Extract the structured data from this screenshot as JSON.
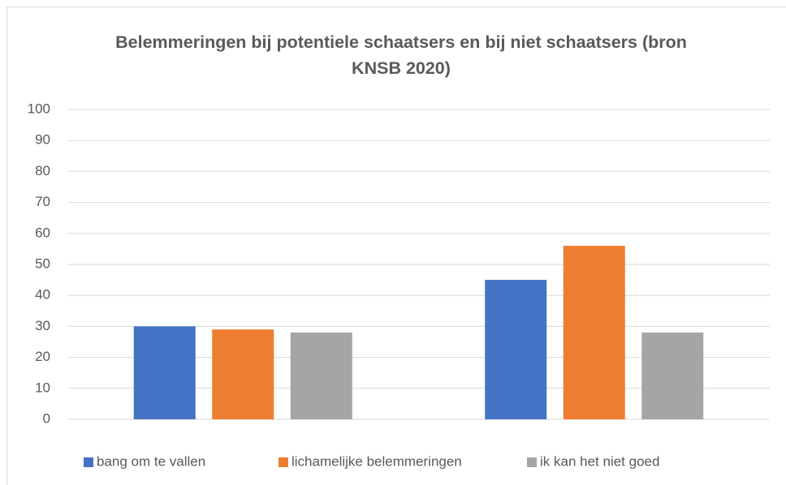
{
  "chart_data": {
    "type": "bar",
    "title": "Belemmeringen bij potentiele schaatsers en bij niet schaatsers (bron KNSB 2020)",
    "categories": [
      null,
      null
    ],
    "series": [
      {
        "name": "bang om te vallen",
        "color": "#4472c4",
        "values": [
          30,
          45
        ]
      },
      {
        "name": "lichamelijke belemmeringen",
        "color": "#ed7d31",
        "values": [
          29,
          56
        ]
      },
      {
        "name": "ik kan het niet goed",
        "color": "#a5a5a5",
        "values": [
          28,
          28
        ]
      }
    ],
    "ylim": [
      0,
      100
    ],
    "yticks": [
      0,
      10,
      20,
      30,
      40,
      50,
      60,
      70,
      80,
      90,
      100
    ],
    "grid": true,
    "legend": "bottom"
  }
}
